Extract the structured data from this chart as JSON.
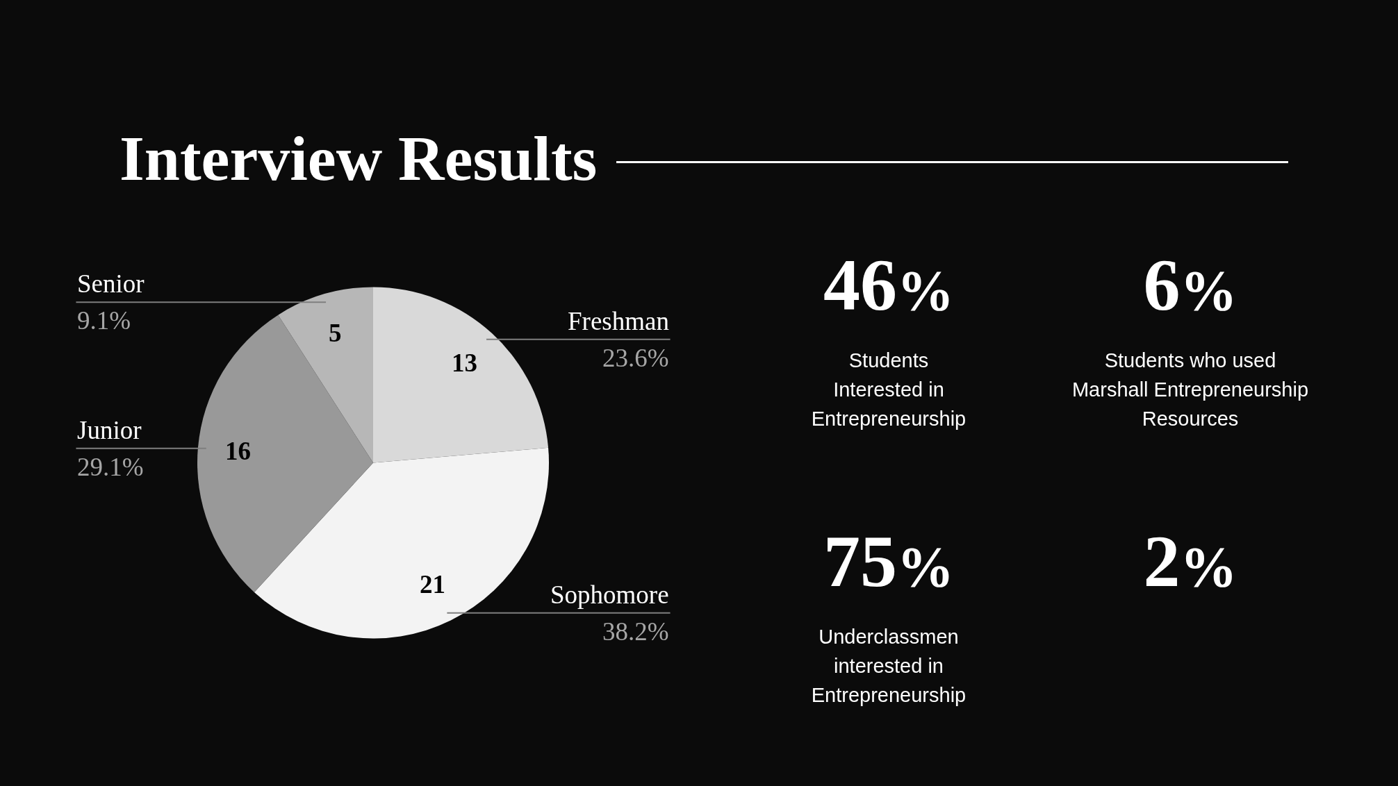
{
  "chart_data": [
    {
      "type": "pie",
      "title": "Interview Results",
      "categories": [
        "Freshman",
        "Sophomore",
        "Junior",
        "Senior"
      ],
      "values": [
        13,
        21,
        16,
        5
      ],
      "colors": [
        "#d9d9d9",
        "#f3f3f3",
        "#999999",
        "#b7b7b7"
      ],
      "data_labels": true,
      "annotations": [
        "23.6%",
        "38.2%",
        "29.1%",
        "9.1%"
      ]
    },
    {
      "type": "other",
      "annotations": [
        "46%",
        "Students\nInterested in\nEntrepreneurship",
        "6%",
        "Students who used\nMarshall Entrepreneurship\nResources",
        "75%",
        "Underclassmen\ninterested in\nEntrepreneurship",
        "2%"
      ]
    }
  ]
}
